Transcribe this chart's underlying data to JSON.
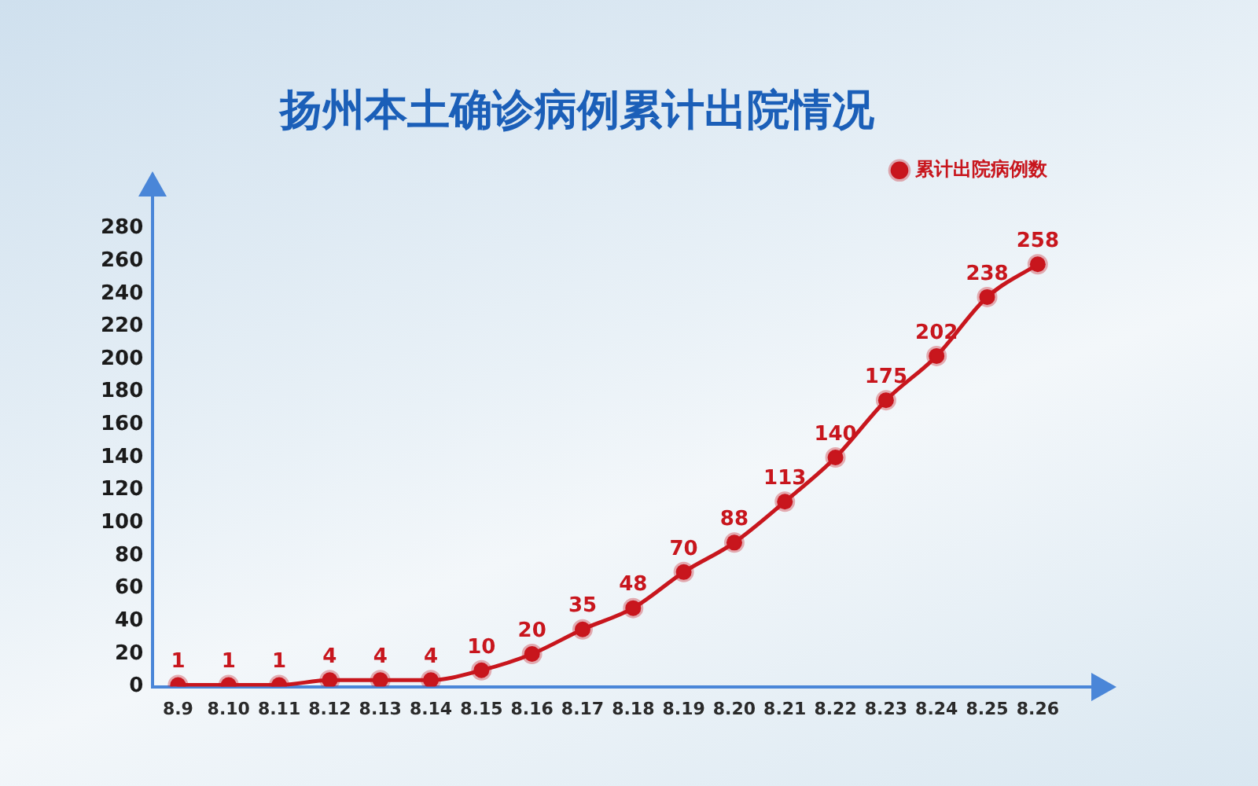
{
  "chart_data": {
    "type": "line",
    "title": "扬州本土确诊病例累计出院情况",
    "categories": [
      "8.9",
      "8.10",
      "8.11",
      "8.12",
      "8.13",
      "8.14",
      "8.15",
      "8.16",
      "8.17",
      "8.18",
      "8.19",
      "8.20",
      "8.21",
      "8.22",
      "8.23",
      "8.24",
      "8.25",
      "8.26"
    ],
    "series": [
      {
        "name": "累计出院病例数",
        "color": "#c8161d",
        "values": [
          1,
          1,
          1,
          4,
          4,
          4,
          10,
          20,
          35,
          48,
          70,
          88,
          113,
          140,
          175,
          202,
          238,
          258
        ]
      }
    ],
    "ylim": [
      0,
      300
    ],
    "yticks": [
      0,
      20,
      40,
      60,
      80,
      100,
      120,
      140,
      160,
      180,
      200,
      220,
      240,
      260,
      280
    ],
    "legend": "top right",
    "marker": "circle",
    "line_style": "solid",
    "data_labels": true
  }
}
